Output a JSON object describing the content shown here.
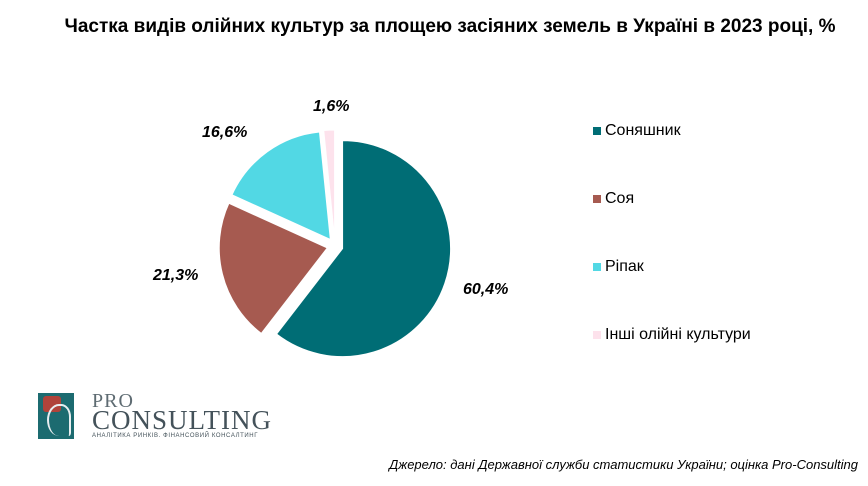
{
  "chart_data": {
    "type": "pie",
    "title": "Частка видів олійних культур за площею засіяних земель в Україні в 2023 році, %",
    "categories": [
      "Соняшник",
      "Соя",
      "Ріпак",
      "Інші олійні культури"
    ],
    "values": [
      60.4,
      21.3,
      16.6,
      1.6
    ],
    "value_labels": [
      "60,4%",
      "21,3%",
      "16,6%",
      "1,6%"
    ],
    "colors": [
      "#006d75",
      "#a65a50",
      "#52d8e4",
      "#fde2ec"
    ],
    "exploded": true,
    "legend": "right"
  },
  "logo": {
    "line1": "PRO",
    "line2": "CONSULTING",
    "tagline": "АНАЛІТИКА РИНКІВ. ФІНАНСОВИЙ КОНСАЛТИНГ"
  },
  "source": "Джерело: дані Державної служби статистики України; оцінка Pro-Consulting"
}
